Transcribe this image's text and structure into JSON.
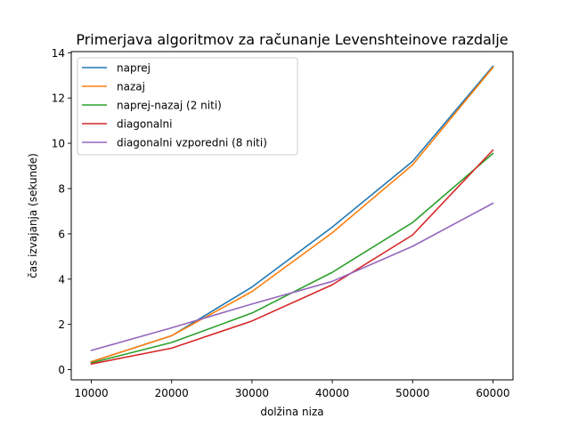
{
  "chart_data": {
    "type": "line",
    "title": "Primerjava algoritmov za računanje Levenshteinove razdalje",
    "xlabel": "dolžina niza",
    "ylabel": "čas izvajanja (sekunde)",
    "x": [
      10000,
      20000,
      30000,
      40000,
      50000,
      60000
    ],
    "x_ticks": [
      10000,
      20000,
      30000,
      40000,
      50000,
      60000
    ],
    "x_tick_labels": [
      "10000",
      "20000",
      "30000",
      "40000",
      "50000",
      "60000"
    ],
    "y_ticks": [
      0,
      2,
      4,
      6,
      8,
      10,
      12,
      14
    ],
    "y_tick_labels": [
      "0",
      "2",
      "4",
      "6",
      "8",
      "10",
      "12",
      "14"
    ],
    "xlim": [
      7500,
      62500
    ],
    "ylim": [
      -0.45,
      14.05
    ],
    "grid": false,
    "legend_position": "top-left",
    "series": [
      {
        "name": "naprej",
        "color": "#1f77b4",
        "values": [
          0.35,
          1.5,
          3.65,
          6.3,
          9.2,
          13.4
        ]
      },
      {
        "name": "nazaj",
        "color": "#ff7f0e",
        "values": [
          0.35,
          1.5,
          3.45,
          6.05,
          9.05,
          13.35
        ]
      },
      {
        "name": "naprej-nazaj (2 niti)",
        "color": "#2ca02c",
        "values": [
          0.3,
          1.2,
          2.5,
          4.3,
          6.5,
          9.55
        ]
      },
      {
        "name": "diagonalni",
        "color": "#d62728",
        "values": [
          0.25,
          0.95,
          2.15,
          3.75,
          5.95,
          9.7
        ]
      },
      {
        "name": "diagonalni vzporedni (8 niti)",
        "color": "#9467bd",
        "values": [
          0.85,
          1.85,
          2.9,
          3.9,
          5.45,
          7.35
        ]
      }
    ]
  }
}
